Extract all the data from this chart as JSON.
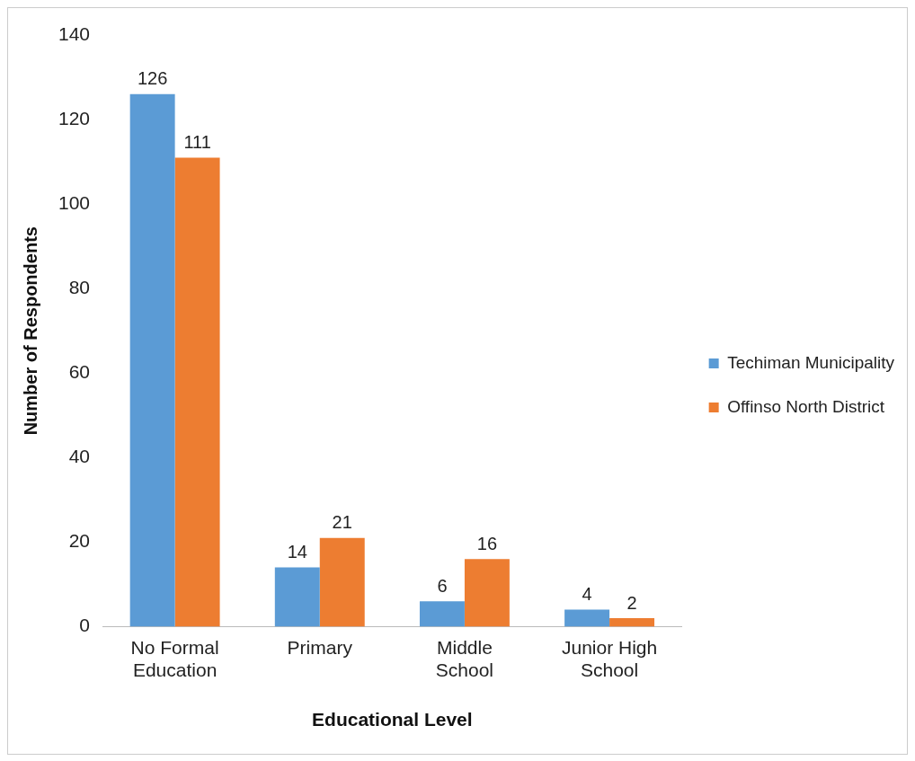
{
  "chart_data": {
    "type": "bar",
    "xlabel": "Educational Level",
    "ylabel": "Number of Respondents",
    "categories": [
      "No Formal Education",
      "Primary",
      "Middle School",
      "Junior High School"
    ],
    "series": [
      {
        "name": "Techiman Municipality",
        "color": "#5b9bd5",
        "values": [
          126,
          14,
          6,
          4
        ]
      },
      {
        "name": "Offinso North District",
        "color": "#ed7d31",
        "values": [
          111,
          21,
          16,
          2
        ]
      }
    ],
    "ylim": [
      0,
      140
    ],
    "yticks": [
      0,
      20,
      40,
      60,
      80,
      100,
      120,
      140
    ],
    "grid": false,
    "legend": "right",
    "data_labels": true
  }
}
